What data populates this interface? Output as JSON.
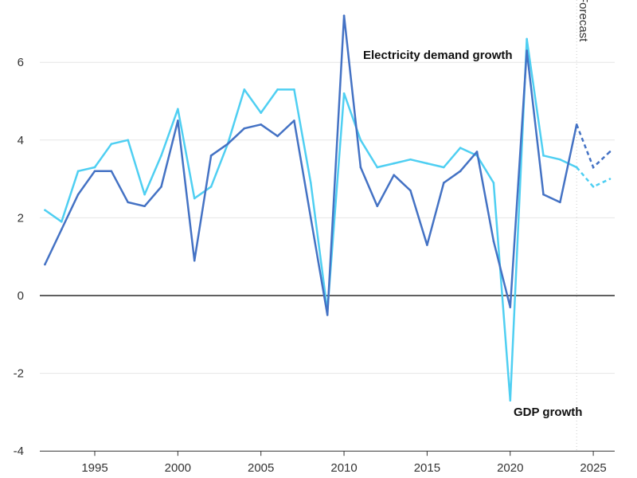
{
  "chart_data": {
    "type": "line",
    "title": "",
    "xlabel": "",
    "ylabel": "",
    "ylim": [
      -4,
      7.4
    ],
    "xlim": [
      1992,
      2026.3
    ],
    "y_ticks": [
      -4,
      -2,
      0,
      2,
      4,
      6
    ],
    "x_ticks": [
      1995,
      2000,
      2005,
      2010,
      2015,
      2020,
      2025
    ],
    "grid": true,
    "forecast_start": 2024,
    "forecast_label": "Forecast",
    "x": [
      1992,
      1993,
      1994,
      1995,
      1996,
      1997,
      1998,
      1999,
      2000,
      2001,
      2002,
      2003,
      2004,
      2005,
      2006,
      2007,
      2008,
      2009,
      2010,
      2011,
      2012,
      2013,
      2014,
      2015,
      2016,
      2017,
      2018,
      2019,
      2020,
      2021,
      2022,
      2023,
      2024,
      2025,
      2026
    ],
    "series": [
      {
        "name": "Electricity demand growth",
        "color": "#4472c4",
        "values": [
          0.8,
          1.7,
          2.6,
          3.2,
          3.2,
          2.4,
          2.3,
          2.8,
          4.5,
          0.9,
          3.6,
          3.9,
          4.3,
          4.4,
          4.1,
          4.5,
          2.0,
          -0.5,
          7.2,
          3.3,
          2.3,
          3.1,
          2.7,
          1.3,
          2.9,
          3.2,
          3.7,
          1.4,
          -0.3,
          6.3,
          2.6,
          2.4,
          4.4,
          3.3,
          3.7
        ]
      },
      {
        "name": "GDP growth",
        "color": "#4fcff2",
        "values": [
          2.2,
          1.9,
          3.2,
          3.3,
          3.9,
          4.0,
          2.6,
          3.6,
          4.8,
          2.5,
          2.8,
          3.9,
          5.3,
          4.7,
          5.3,
          5.3,
          2.9,
          -0.4,
          5.2,
          4.0,
          3.3,
          3.4,
          3.5,
          3.4,
          3.3,
          3.8,
          3.6,
          2.9,
          -2.7,
          6.6,
          3.6,
          3.5,
          3.3,
          2.8,
          3.0
        ]
      }
    ],
    "annotations": [
      "Electricity demand growth",
      "GDP growth"
    ]
  }
}
